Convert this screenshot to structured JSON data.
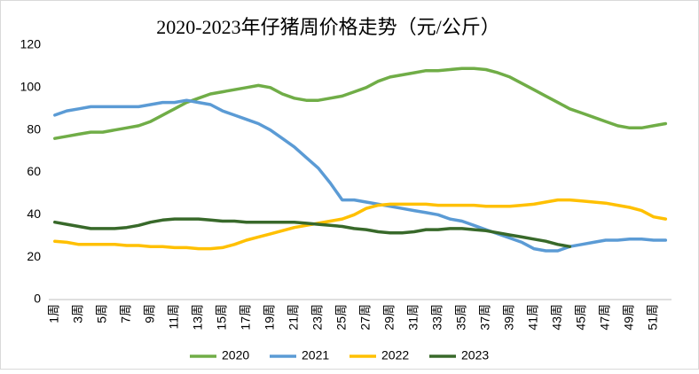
{
  "chart_data": {
    "type": "line",
    "title": "2020-2023年仔猪周价格走势（元/公斤）",
    "categories": [
      "1周",
      null,
      "3周",
      null,
      "5周",
      null,
      "7周",
      null,
      "9周",
      null,
      "11周",
      null,
      "13周",
      null,
      "15周",
      null,
      "17周",
      null,
      "19周",
      null,
      "21周",
      null,
      "23周",
      null,
      "25周",
      null,
      "27周",
      null,
      "29周",
      null,
      "31周",
      null,
      "33周",
      null,
      "35周",
      null,
      "37周",
      null,
      "39周",
      null,
      "41周",
      null,
      "43周",
      null,
      "45周",
      null,
      "47周",
      null,
      "49周",
      null,
      "51周",
      null
    ],
    "series": [
      {
        "name": "2020",
        "color": "#70ad47",
        "values": [
          76,
          77,
          78,
          79,
          79,
          80,
          81,
          82,
          84,
          87,
          90,
          93,
          95,
          97,
          98,
          99,
          100,
          101,
          100,
          97,
          95,
          94,
          94,
          95,
          96,
          98,
          100,
          103,
          105,
          106,
          107,
          108,
          108,
          108.5,
          109,
          109,
          108.5,
          107,
          105,
          102,
          99,
          96,
          93,
          90,
          88,
          86,
          84,
          82,
          81,
          81,
          82,
          83
        ]
      },
      {
        "name": "2021",
        "color": "#5b9bd5",
        "values": [
          87,
          89,
          90,
          91,
          91,
          91,
          91,
          91,
          92,
          93,
          93,
          94,
          93,
          92,
          89,
          87,
          85,
          83,
          80,
          76,
          72,
          67,
          62,
          55,
          47,
          47,
          46,
          45,
          44,
          43,
          42,
          41,
          40,
          38,
          37,
          35,
          33,
          31,
          29,
          27,
          24,
          23,
          23,
          25,
          26,
          27,
          28,
          28,
          28.5,
          28.5,
          28,
          28
        ]
      },
      {
        "name": "2022",
        "color": "#ffc000",
        "values": [
          27.5,
          27,
          26,
          26,
          26,
          26,
          25.5,
          25.5,
          25,
          25,
          24.5,
          24.5,
          24,
          24,
          24.5,
          26,
          28,
          29.5,
          31,
          32.5,
          34,
          35,
          36,
          37,
          38,
          40,
          43,
          44.5,
          45,
          45,
          45,
          45,
          44.5,
          44.5,
          44.5,
          44.5,
          44,
          44,
          44,
          44.5,
          45,
          46,
          47,
          47,
          46.5,
          46,
          45.5,
          44.5,
          43.5,
          42,
          39,
          38
        ]
      },
      {
        "name": "2023",
        "color": "#38692a",
        "values": [
          36.5,
          35.5,
          34.5,
          33.5,
          33.5,
          33.5,
          34,
          35,
          36.5,
          37.5,
          38,
          38,
          38,
          37.5,
          37,
          37,
          36.5,
          36.5,
          36.5,
          36.5,
          36.5,
          36,
          35.5,
          35,
          34.5,
          33.5,
          33,
          32,
          31.5,
          31.5,
          32,
          33,
          33,
          33.5,
          33.5,
          33,
          32.5,
          31.5,
          30.5,
          29.5,
          28.5,
          27.5,
          26,
          25,
          null,
          null,
          null,
          null,
          null,
          null,
          null,
          null
        ]
      }
    ],
    "ylim": [
      0,
      120
    ],
    "yticks": [
      0,
      20,
      40,
      60,
      80,
      100,
      120
    ],
    "grid": false,
    "legend": "bottom"
  }
}
